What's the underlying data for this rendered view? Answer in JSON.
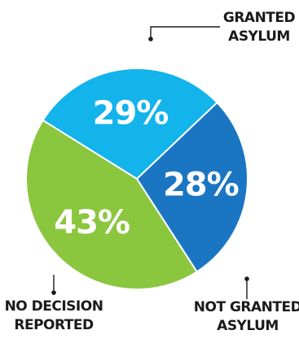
{
  "chart_data": {
    "type": "pie",
    "slices": [
      {
        "key": "granted",
        "label_lines": [
          "GRANTED",
          "ASYLUM"
        ],
        "value": 29,
        "value_label": "29%",
        "color": "#13b3ec"
      },
      {
        "key": "not_granted",
        "label_lines": [
          "NOT GRANTED",
          "ASYLUM"
        ],
        "value": 28,
        "value_label": "28%",
        "color": "#1a76c2"
      },
      {
        "key": "no_decision",
        "label_lines": [
          "NO DECISION",
          "REPORTED"
        ],
        "value": 43,
        "value_label": "43%",
        "color": "#8bc63f"
      }
    ],
    "slice_border_color": "#ffffff",
    "legend": "callouts"
  }
}
